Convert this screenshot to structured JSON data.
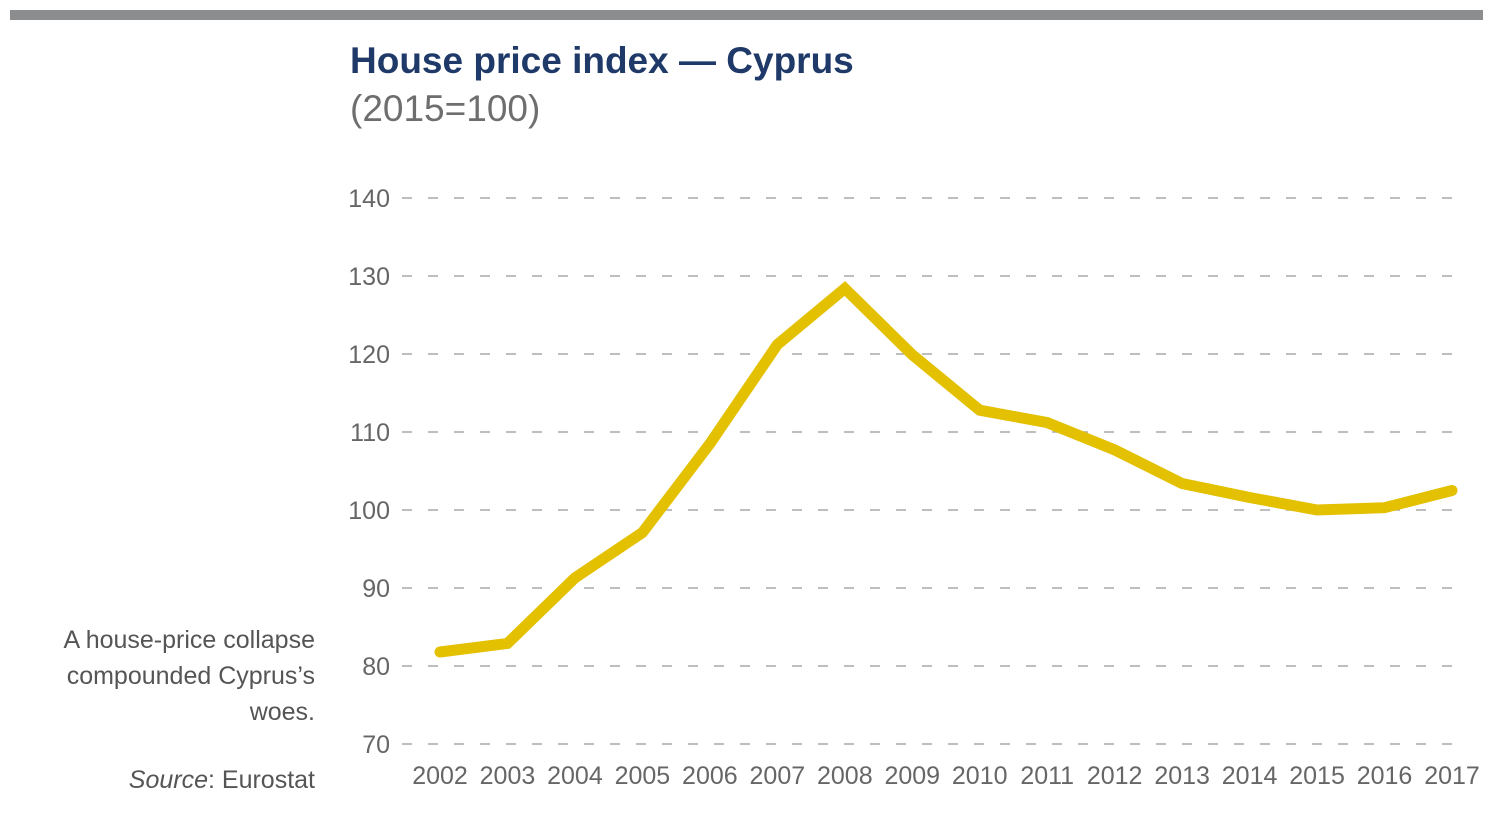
{
  "header": {
    "title": "House price index — Cyprus",
    "subtitle": "(2015=100)"
  },
  "note": {
    "text": "A house-price collapse compounded Cyprus’s woes."
  },
  "source": {
    "label": "Source",
    "separator": ": ",
    "value": "Eurostat"
  },
  "colors": {
    "line": "#e3c000",
    "grid": "#a9a9a9",
    "title": "#1f3a68",
    "rule": "#8c8d8f"
  },
  "chart_data": {
    "type": "line",
    "title": "House price index — Cyprus",
    "subtitle": "(2015=100)",
    "xlabel": "",
    "ylabel": "",
    "ylim": [
      70,
      140
    ],
    "yticks": [
      70,
      80,
      90,
      100,
      110,
      120,
      130,
      140
    ],
    "grid": true,
    "grid_style": "dashed",
    "legend": "none",
    "x": [
      "2002",
      "2003",
      "2004",
      "2005",
      "2006",
      "2007",
      "2008",
      "2009",
      "2010",
      "2011",
      "2012",
      "2013",
      "2014",
      "2015",
      "2016",
      "2017"
    ],
    "series": [
      {
        "values": [
          81.8,
          82.9,
          91.3,
          97.1,
          108.5,
          121.2,
          128.4,
          119.9,
          112.8,
          111.2,
          107.7,
          103.4,
          101.6,
          100.0,
          100.3,
          102.5
        ]
      }
    ]
  }
}
